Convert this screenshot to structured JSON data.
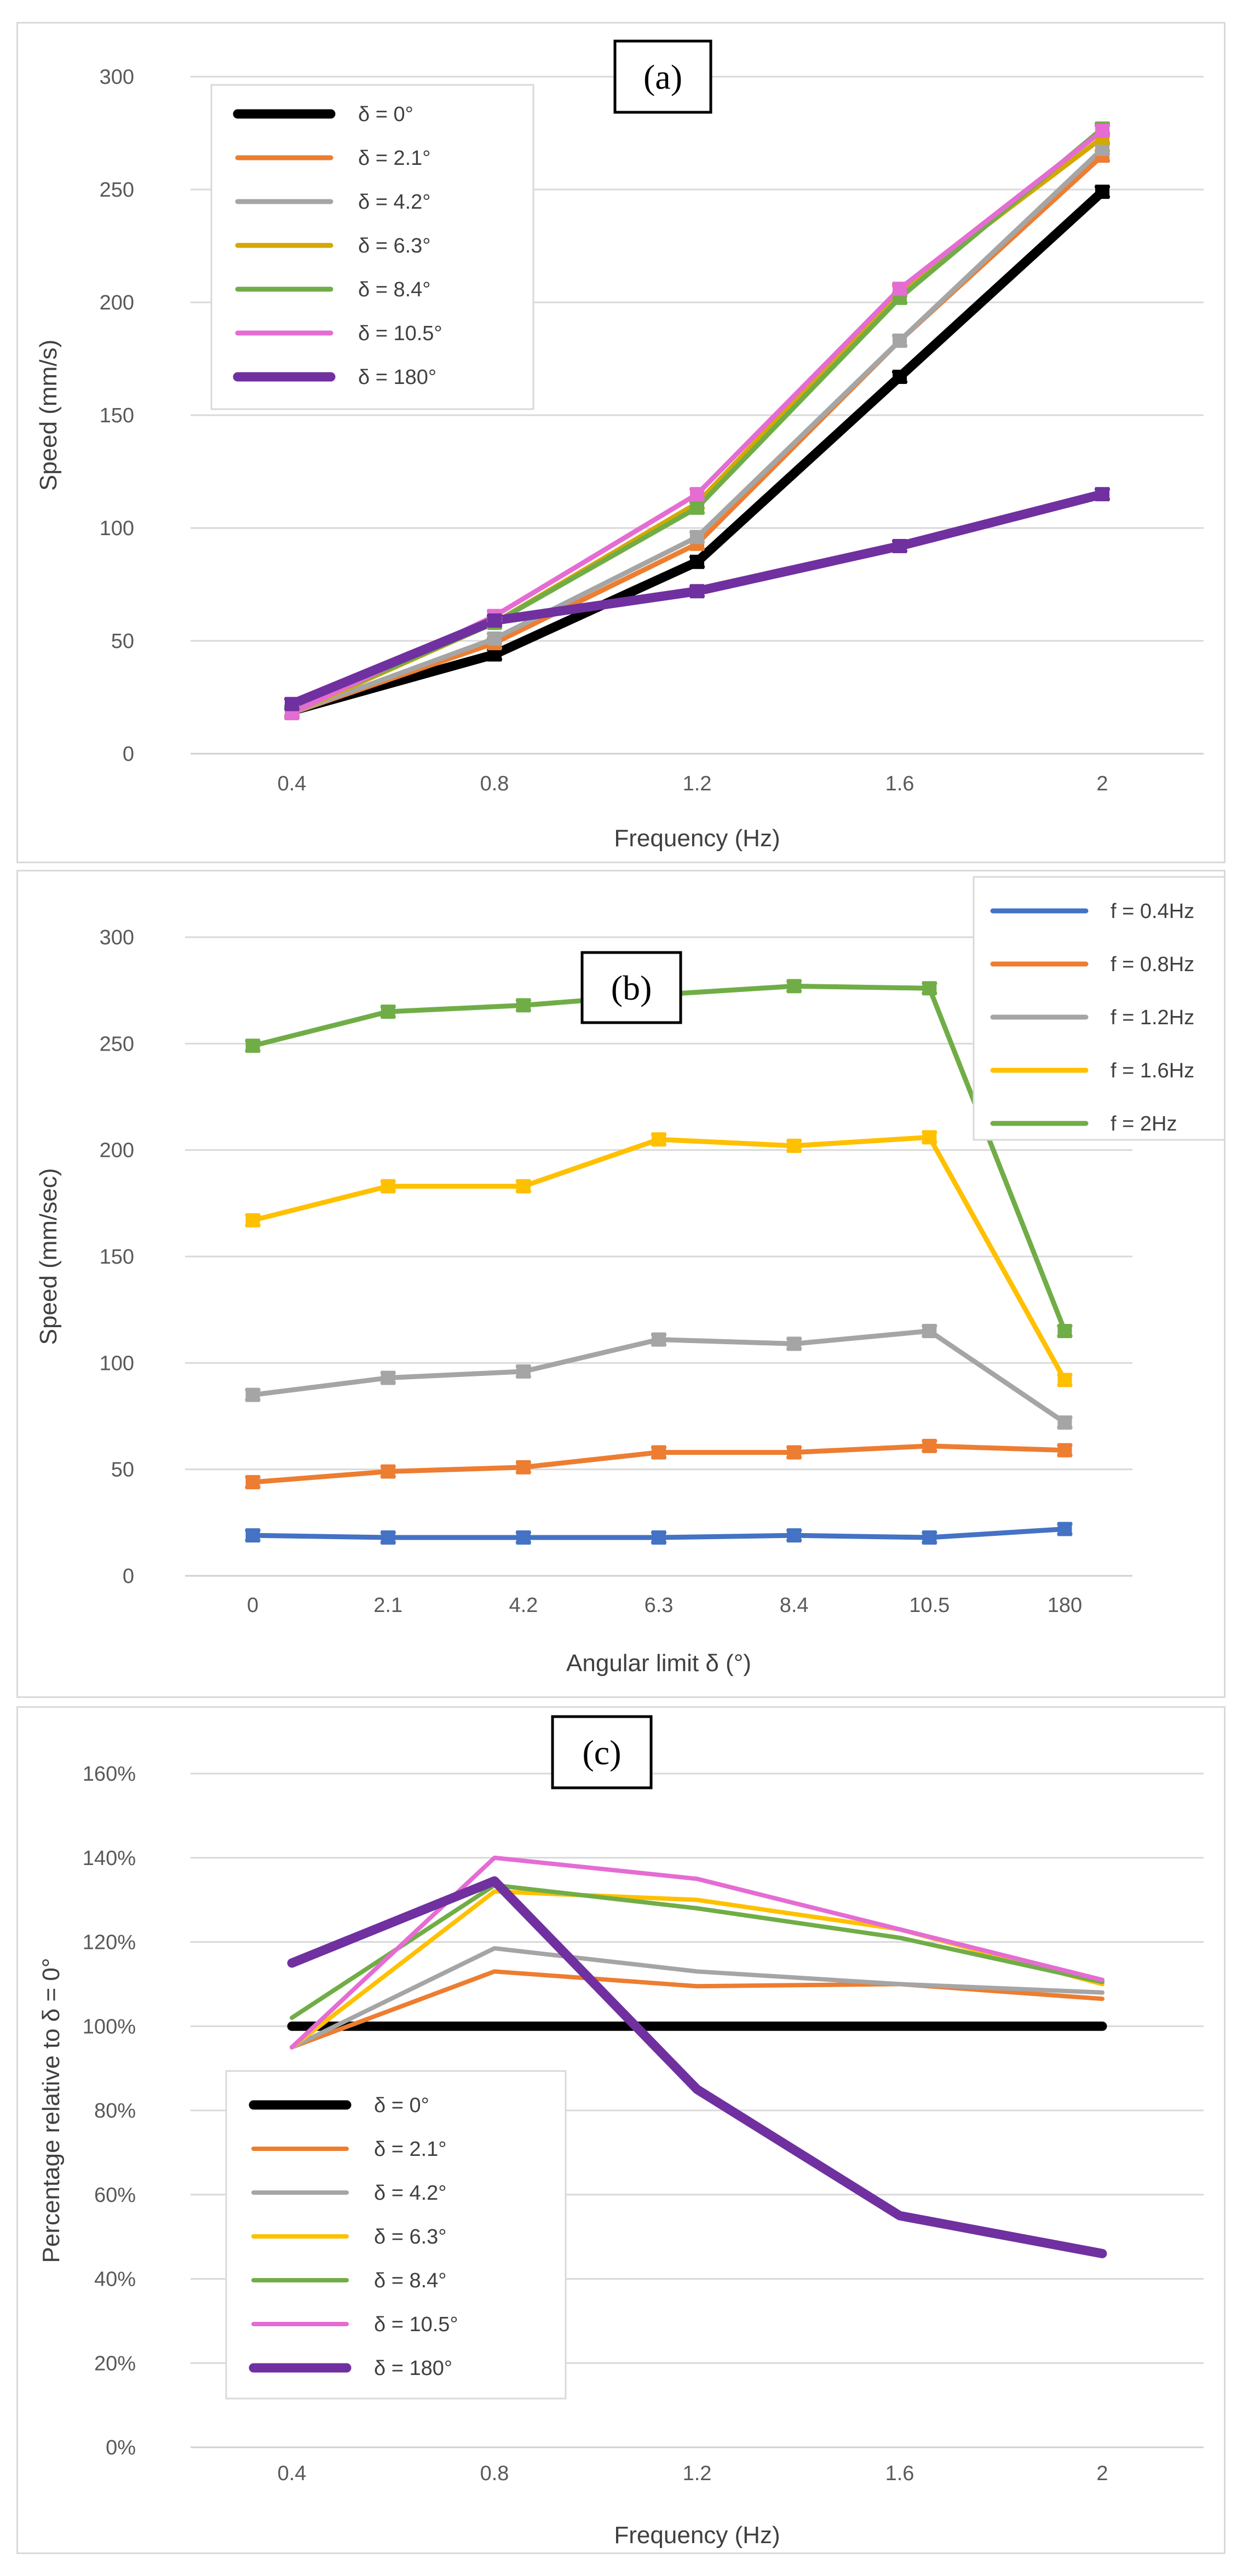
{
  "chart_data": [
    {
      "type": "line",
      "panel_label": "(a)",
      "xlabel": "Frequency (Hz)",
      "ylabel": "Speed (mm/s)",
      "x": [
        "0.4",
        "0.8",
        "1.2",
        "1.6",
        "2"
      ],
      "y_ticks": [
        "0",
        "50",
        "100",
        "150",
        "200",
        "250",
        "300"
      ],
      "ylim": [
        0,
        300
      ],
      "grid": true,
      "error_bars": true,
      "legend_placement": "top-left",
      "series": [
        {
          "name": "δ = 0°",
          "color": "#000000",
          "values": [
            19,
            44,
            85,
            167,
            249
          ]
        },
        {
          "name": "δ = 2.1°",
          "color": "#ED7D31",
          "values": [
            18,
            49,
            93,
            183,
            265
          ]
        },
        {
          "name": "δ = 4.2°",
          "color": "#A5A5A5",
          "values": [
            18,
            51,
            96,
            183,
            268
          ]
        },
        {
          "name": "δ = 6.3°",
          "color": "#D4A800",
          "values": [
            18,
            58,
            111,
            205,
            273
          ]
        },
        {
          "name": "δ = 8.4°",
          "color": "#70AD47",
          "values": [
            19,
            58,
            109,
            202,
            277
          ]
        },
        {
          "name": "δ = 10.5°",
          "color": "#E56CD3",
          "values": [
            18,
            61,
            115,
            206,
            276
          ]
        },
        {
          "name": "δ = 180°",
          "color": "#7030A0",
          "values": [
            22,
            59,
            72,
            92,
            115
          ]
        }
      ]
    },
    {
      "type": "line",
      "panel_label": "(b)",
      "xlabel": "Angular limit δ (°)",
      "ylabel": "Speed (mm/sec)",
      "categories": [
        "0",
        "2.1",
        "4.2",
        "6.3",
        "8.4",
        "10.5",
        "180"
      ],
      "y_ticks": [
        "0",
        "50",
        "100",
        "150",
        "200",
        "250",
        "300"
      ],
      "ylim": [
        0,
        300
      ],
      "grid": true,
      "error_bars": true,
      "legend_placement": "top-right",
      "series": [
        {
          "name": "f = 0.4Hz",
          "color": "#4472C4",
          "values": [
            19,
            18,
            18,
            18,
            19,
            18,
            22
          ]
        },
        {
          "name": "f = 0.8Hz",
          "color": "#ED7D31",
          "values": [
            44,
            49,
            51,
            58,
            58,
            61,
            59
          ]
        },
        {
          "name": "f = 1.2Hz",
          "color": "#A5A5A5",
          "values": [
            85,
            93,
            96,
            111,
            109,
            115,
            72
          ]
        },
        {
          "name": "f = 1.6Hz",
          "color": "#FFC000",
          "values": [
            167,
            183,
            183,
            205,
            202,
            206,
            92
          ]
        },
        {
          "name": "f = 2Hz",
          "color": "#70AD47",
          "values": [
            249,
            265,
            268,
            273,
            277,
            276,
            115
          ]
        }
      ]
    },
    {
      "type": "line",
      "panel_label": "(c)",
      "xlabel": "Frequency (Hz)",
      "ylabel": "Percentage relative to δ = 0°",
      "x": [
        "0.4",
        "0.8",
        "1.2",
        "1.6",
        "2"
      ],
      "y_ticks": [
        "0%",
        "20%",
        "40%",
        "60%",
        "80%",
        "100%",
        "120%",
        "140%",
        "160%"
      ],
      "ylim": [
        0,
        1.6
      ],
      "grid": true,
      "error_bars": false,
      "legend_placement": "bottom-left",
      "series": [
        {
          "name": "δ = 0°",
          "color": "#000000",
          "values": [
            1.0,
            1.0,
            1.0,
            1.0,
            1.0
          ]
        },
        {
          "name": "δ = 2.1°",
          "color": "#ED7D31",
          "values": [
            0.95,
            1.13,
            1.095,
            1.1,
            1.065
          ]
        },
        {
          "name": "δ = 4.2°",
          "color": "#A5A5A5",
          "values": [
            0.95,
            1.185,
            1.13,
            1.1,
            1.08
          ]
        },
        {
          "name": "δ = 6.3°",
          "color": "#FFC000",
          "values": [
            0.95,
            1.32,
            1.3,
            1.23,
            1.1
          ]
        },
        {
          "name": "δ = 8.4°",
          "color": "#70AD47",
          "values": [
            1.02,
            1.335,
            1.28,
            1.21,
            1.105
          ]
        },
        {
          "name": "δ = 10.5°",
          "color": "#E56CD3",
          "values": [
            0.95,
            1.4,
            1.35,
            1.23,
            1.11
          ]
        },
        {
          "name": "δ = 180°",
          "color": "#7030A0",
          "values": [
            1.15,
            1.345,
            0.85,
            0.55,
            0.46
          ]
        }
      ]
    }
  ]
}
